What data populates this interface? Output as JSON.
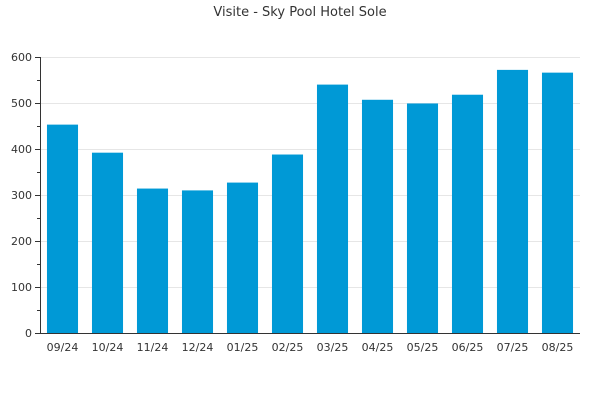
{
  "chart_data": {
    "type": "bar",
    "title": "Visite - Sky Pool Hotel Sole",
    "xlabel": "",
    "ylabel": "",
    "categories": [
      "09/24",
      "10/24",
      "11/24",
      "12/24",
      "01/25",
      "02/25",
      "03/25",
      "04/25",
      "05/25",
      "06/25",
      "07/25",
      "08/25"
    ],
    "values": [
      453,
      392,
      314,
      310,
      327,
      388,
      540,
      507,
      499,
      518,
      572,
      566
    ],
    "ylim": [
      0,
      600
    ],
    "yticks": [
      "0",
      "100",
      "200",
      "300",
      "400",
      "500",
      "600"
    ],
    "bar_color": "#0099d6",
    "grid": true,
    "legend": "none"
  }
}
